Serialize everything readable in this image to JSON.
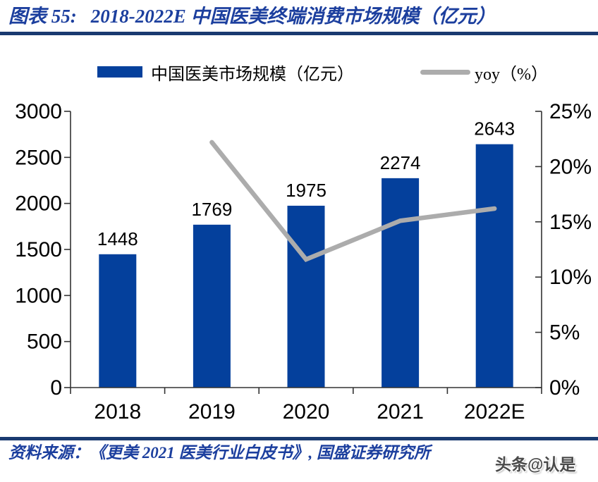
{
  "header": {
    "label": "图表 55:",
    "title": "2018-2022E 中国医美终端消费市场规模（亿元）"
  },
  "legend": {
    "items": [
      {
        "label": "中国医美市场规模（亿元）",
        "swatch": "bar",
        "color": "#04409C"
      },
      {
        "label": "yoy（%）",
        "swatch": "line",
        "color": "#ACACAC"
      }
    ]
  },
  "chart_data": {
    "type": "bar",
    "subtype": "combo-bar-line-dual-axis",
    "title": "2018-2022E 中国医美终端消费市场规模（亿元）",
    "categories": [
      "2018",
      "2019",
      "2020",
      "2021",
      "2022E"
    ],
    "series": [
      {
        "name": "中国医美市场规模（亿元）",
        "type": "bar",
        "axis": "left",
        "color": "#04409C",
        "values": [
          1448,
          1769,
          1975,
          2274,
          2643
        ],
        "data_labels": [
          "1448",
          "1769",
          "1975",
          "2274",
          "2643"
        ]
      },
      {
        "name": "yoy（%）",
        "type": "line",
        "axis": "right",
        "color": "#ACACAC",
        "values": [
          null,
          22.2,
          11.6,
          15.1,
          16.2
        ],
        "data_labels": null
      }
    ],
    "left_axis": {
      "min": 0,
      "max": 3000,
      "step": 500,
      "tick_labels": [
        "0",
        "500",
        "1000",
        "1500",
        "2000",
        "2500",
        "3000"
      ]
    },
    "right_axis": {
      "min": 0,
      "max": 25,
      "step": 5,
      "tick_labels": [
        "0%",
        "5%",
        "10%",
        "15%",
        "20%",
        "25%"
      ]
    },
    "grid": false,
    "legend_position": "top",
    "xlabel": "",
    "ylabel_left": "亿元",
    "ylabel_right": "%"
  },
  "footer": {
    "source": "资料来源：《更美 2021 医美行业白皮书》, 国盛证券研究所",
    "watermark": "头条@认是"
  },
  "colors": {
    "bar_blue": "#04409C",
    "line_gray": "#ACACAC",
    "title_blue": "#1C3F9E",
    "rule_navy": "#1A3A70",
    "axis_stroke": "#333333",
    "label_text": "#000000"
  }
}
